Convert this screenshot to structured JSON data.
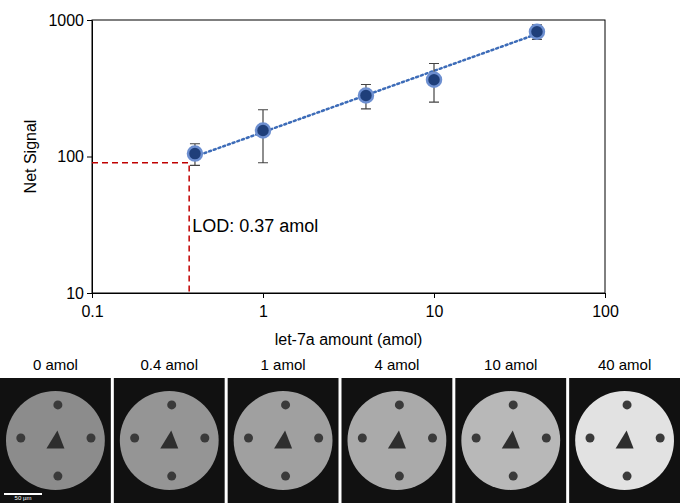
{
  "chart_data": {
    "type": "scatter",
    "log": true,
    "x_label": "let-7a amount (amol)",
    "y_label": "Net Signal",
    "x": [
      0.4,
      1,
      4,
      10,
      40
    ],
    "values": [
      105,
      155,
      280,
      365,
      820
    ],
    "errors": [
      19,
      65,
      57,
      115,
      100
    ],
    "color": "#1f3f7a",
    "marker": "circle",
    "trendline": {
      "x": [
        0.4,
        40
      ],
      "values": [
        100,
        790
      ],
      "line_style": "dotted",
      "color": "#3d6cb8"
    },
    "lod": {
      "x": 0.37,
      "y": 90,
      "label": "LOD: 0.37 amol",
      "color": "#c00000",
      "line_style": "dashed"
    },
    "xlim": [
      0.1,
      100
    ],
    "xticks": [
      0.1,
      1,
      10,
      100
    ],
    "ylim": [
      10,
      1000
    ],
    "yticks": [
      10,
      100,
      1000
    ]
  },
  "images": {
    "panels": [
      {
        "label": "0 amol",
        "color": "#8c8c8c"
      },
      {
        "label": "0.4 amol",
        "color": "#959595"
      },
      {
        "label": "1 amol",
        "color": "#a0a0a0"
      },
      {
        "label": "4 amol",
        "color": "#aaaaaa"
      },
      {
        "label": "10 amol",
        "color": "#b8b8b8"
      },
      {
        "label": "40 amol",
        "color": "#e2e2e2"
      }
    ],
    "scale_bar": "50 µm"
  }
}
